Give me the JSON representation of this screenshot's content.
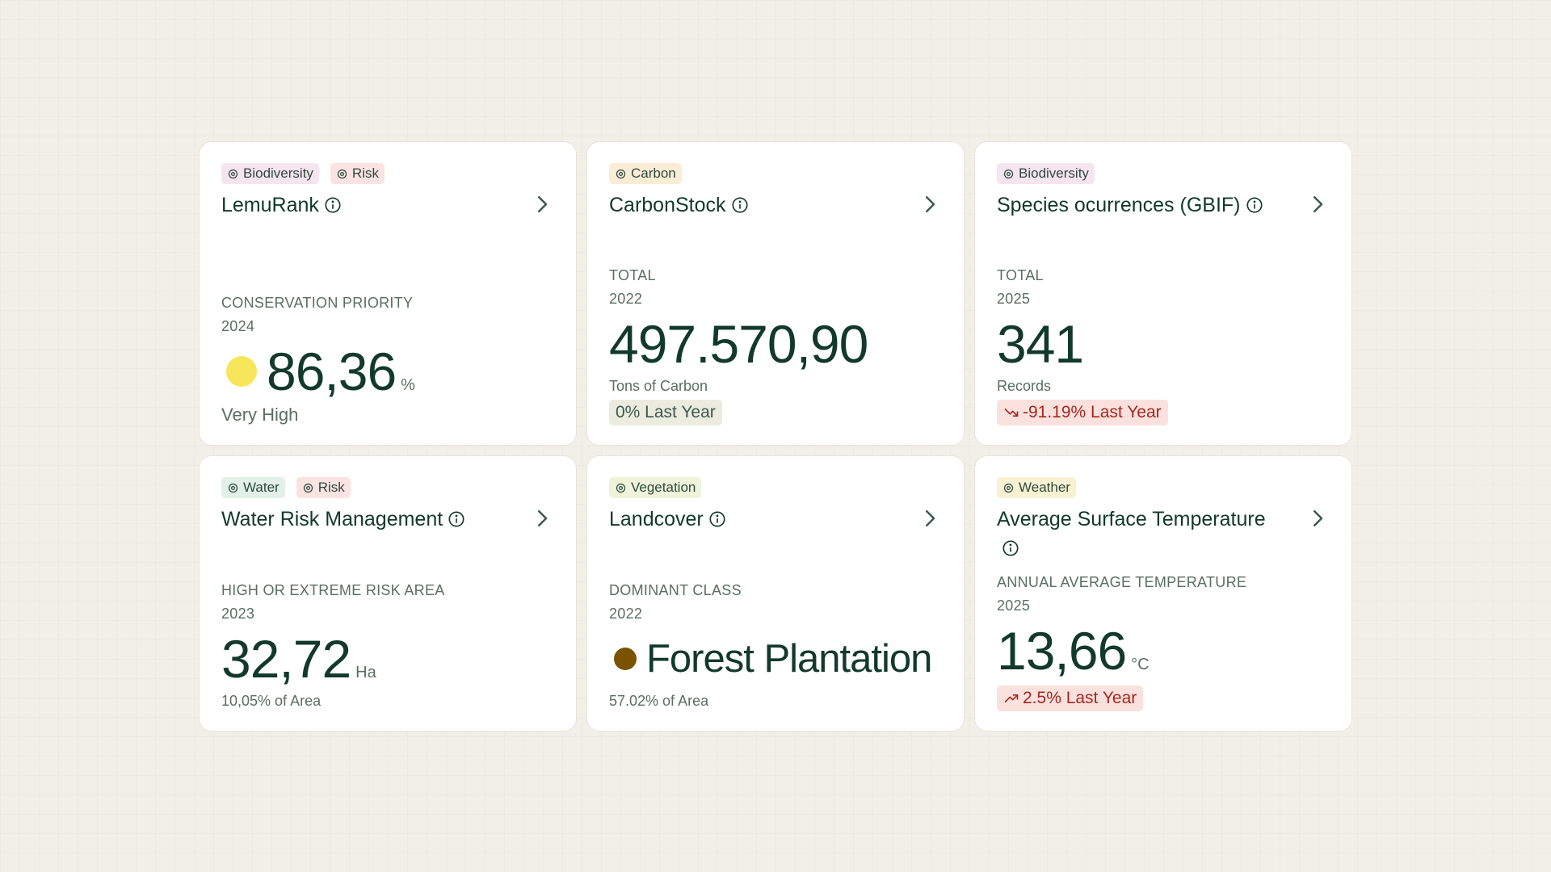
{
  "cards": [
    {
      "tags": [
        {
          "label": "Biodiversity",
          "color": "#f6e4ee"
        },
        {
          "label": "Risk",
          "color": "#fbe3e1"
        }
      ],
      "title": "LemuRank",
      "metric_label": "CONSERVATION PRIORITY",
      "year": "2024",
      "value": "86,36",
      "unit": "%",
      "dot_color": "#f7e55a",
      "note": "Very High"
    },
    {
      "tags": [
        {
          "label": "Carbon",
          "color": "#fbecd6"
        }
      ],
      "title": "CarbonStock",
      "metric_label": "TOTAL",
      "year": "2022",
      "value": "497.570,90",
      "note": "Tons of Carbon",
      "change": {
        "text": "0% Last Year",
        "color": "#ecebdf"
      }
    },
    {
      "tags": [
        {
          "label": "Biodiversity",
          "color": "#f6e4ee"
        }
      ],
      "title": "Species ocurrences (GBIF)",
      "metric_label": "TOTAL",
      "year": "2025",
      "value": "341",
      "note": "Records",
      "change": {
        "text": "-91.19% Last Year",
        "color": "#fbe1de"
      }
    },
    {
      "tags": [
        {
          "label": "Water",
          "color": "#e1f1e8"
        },
        {
          "label": "Risk",
          "color": "#fbe3e1"
        }
      ],
      "title": "Water Risk Management",
      "metric_label": "HIGH OR EXTREME RISK AREA",
      "year": "2023",
      "value": "32,72",
      "unit": "Ha",
      "note": "10,05% of Area"
    },
    {
      "tags": [
        {
          "label": "Vegetation",
          "color": "#eef3d9"
        }
      ],
      "title": "Landcover",
      "metric_label": "DOMINANT CLASS",
      "year": "2022",
      "value": "Forest Plantation",
      "dot_color": "#7a5300",
      "note": "57.02% of Area"
    },
    {
      "tags": [
        {
          "label": "Weather",
          "color": "#f8f2d2"
        }
      ],
      "title": "Average Surface Temperature",
      "metric_label": "ANNUAL AVERAGE TEMPERATURE",
      "year": "2025",
      "value": "13,66",
      "unit": "°C",
      "change": {
        "text": "2.5% Last Year",
        "color": "#fbe1de"
      }
    }
  ]
}
